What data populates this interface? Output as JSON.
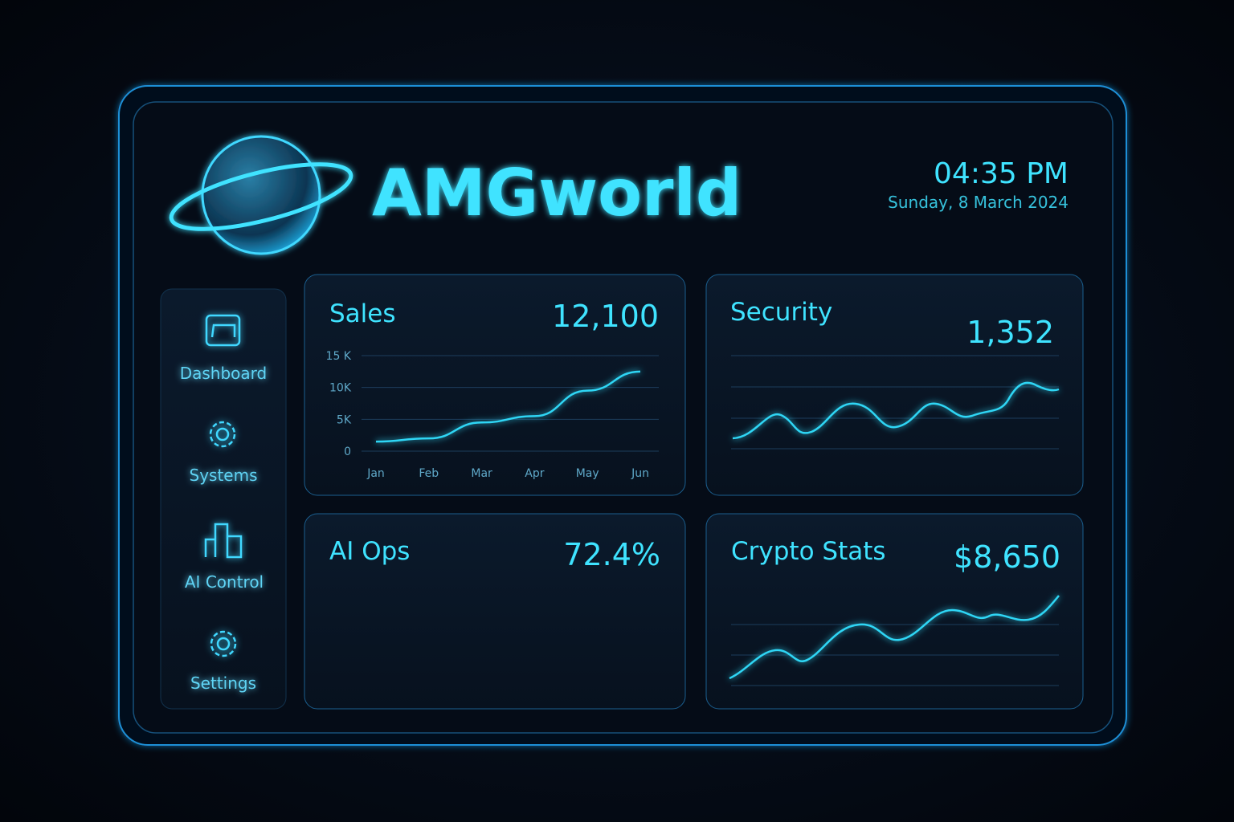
{
  "header": {
    "title": "AMGworld",
    "time": "04:35 PM",
    "date": "Sunday, 8 March 2024"
  },
  "nav": [
    "Dashboard",
    "Systems",
    "AI Control",
    "Settings"
  ],
  "cards": {
    "sales": {
      "title": "Sales",
      "value": "12,100"
    },
    "security": {
      "title": "Security",
      "value": "1,352"
    },
    "ai_ops": {
      "title": "AI Ops",
      "value": "72.4%"
    },
    "crypto": {
      "title": "Crypto Stats",
      "value": "$8,650"
    }
  },
  "chart_data": {
    "type": "line",
    "categories": [
      "Jan",
      "Feb",
      "Mar",
      "Apr",
      "May",
      "Jun"
    ],
    "values": [
      1500,
      2000,
      4500,
      5500,
      9500,
      12500
    ],
    "color": "#2fd6f5",
    "ylim": [
      0,
      15000
    ],
    "yticks": [
      0,
      {
        "value": 5000,
        "label": "5K"
      },
      {
        "value": 10000,
        "label": "10K"
      },
      {
        "value": 15000,
        "label": "15 K"
      }
    ],
    "grid": true
  }
}
